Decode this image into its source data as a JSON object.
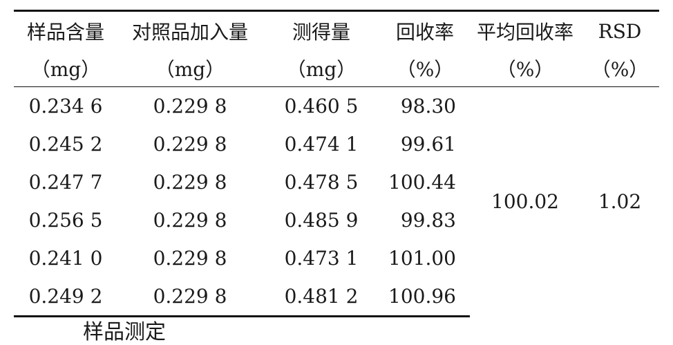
{
  "table": {
    "headers_row1": [
      "样品含量",
      "对照品加入量",
      "测得量",
      "回收率",
      "平均回收率",
      "RSD"
    ],
    "headers_row2": [
      "（mg）",
      "（mg）",
      "（mg）",
      "（%）",
      "（%）",
      "（%）"
    ],
    "rows": [
      [
        "0.234 6",
        "0.229 8",
        "0.460 5",
        "98.30"
      ],
      [
        "0.245 2",
        "0.229 8",
        "0.474 1",
        "99.61"
      ],
      [
        "0.247 7",
        "0.229 8",
        "0.478 5",
        "100.44"
      ],
      [
        "0.256 5",
        "0.229 8",
        "0.485 9",
        "99.83"
      ],
      [
        "0.241 0",
        "0.229 8",
        "0.473 1",
        "101.00"
      ],
      [
        "0.249 2",
        "0.229 8",
        "0.481 2",
        "100.96"
      ]
    ],
    "average_recovery": "100.02",
    "rsd": "1.02"
  },
  "footer_text": "样品测定"
}
